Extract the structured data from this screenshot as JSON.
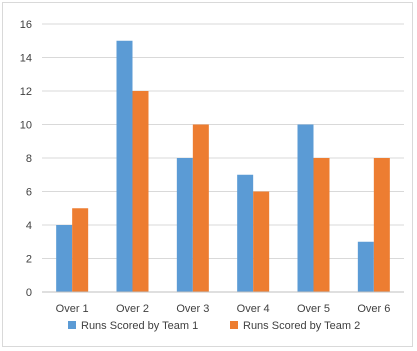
{
  "chart_data": {
    "type": "bar",
    "title": "",
    "xlabel": "",
    "ylabel": "",
    "categories": [
      "Over 1",
      "Over 2",
      "Over 3",
      "Over 4",
      "Over 5",
      "Over 6"
    ],
    "series": [
      {
        "name": "Runs Scored by Team 1",
        "color": "#5b9bd5",
        "values": [
          4,
          15,
          8,
          7,
          10,
          3
        ]
      },
      {
        "name": "Runs Scored by Team 2",
        "color": "#ed7d31",
        "values": [
          5,
          12,
          10,
          6,
          8,
          8
        ]
      }
    ],
    "ylim": [
      0,
      16
    ],
    "yticks": [
      0,
      2,
      4,
      6,
      8,
      10,
      12,
      14,
      16
    ],
    "grid": true,
    "legend_position": "bottom"
  }
}
